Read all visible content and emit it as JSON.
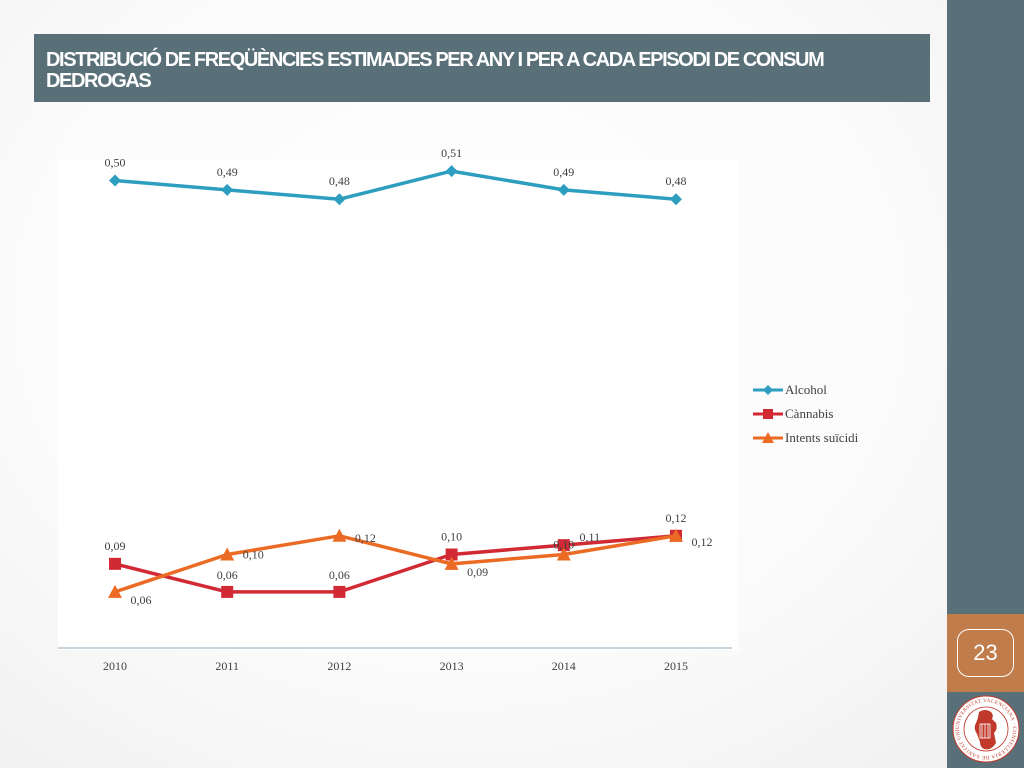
{
  "slide": {
    "title": "DISTRIBUCIÓ DE FREQÜÈNCIES ESTIMADES PER ANY I PER A CADA EPISODI DE CONSUM DEDROGAS",
    "page_number": "23"
  },
  "colors": {
    "header_bg": "#5a7079",
    "sidebar_bg": "#5a7079",
    "page_number_bg": "#c17c4b",
    "emblem": "#c0392b"
  },
  "emblem": {
    "ring_text": "UNIVERSITAT VALENCIANA · CONSELLERIA DE SANITAT UNIVERSAL I SALUT PÚBLICA"
  },
  "chart_data": {
    "type": "line",
    "categories": [
      "2010",
      "2011",
      "2012",
      "2013",
      "2014",
      "2015"
    ],
    "ylim": [
      0,
      0.6
    ],
    "grid": false,
    "legend_position": "right",
    "series": [
      {
        "name": "Alcohol",
        "values": [
          0.5,
          0.49,
          0.48,
          0.51,
          0.49,
          0.48
        ],
        "labels": [
          "0,50",
          "0,49",
          "0,48",
          "0,51",
          "0,49",
          "0,48"
        ],
        "color": "#2e9ec0",
        "marker": "diamond"
      },
      {
        "name": "Cànnabis",
        "values": [
          0.09,
          0.06,
          0.06,
          0.1,
          0.11,
          0.12
        ],
        "labels": [
          "0,09",
          "0,06",
          "0,06",
          "0,10",
          "0,11",
          "0,12"
        ],
        "color": "#d22a35",
        "marker": "square"
      },
      {
        "name": "Intents suïcidi",
        "values": [
          0.06,
          0.1,
          0.12,
          0.09,
          0.1,
          0.12
        ],
        "labels": [
          "0,06",
          "0,10",
          "0,12",
          "0,09",
          "0,10",
          "0,12"
        ],
        "color": "#ec6b24",
        "marker": "triangle"
      }
    ]
  }
}
